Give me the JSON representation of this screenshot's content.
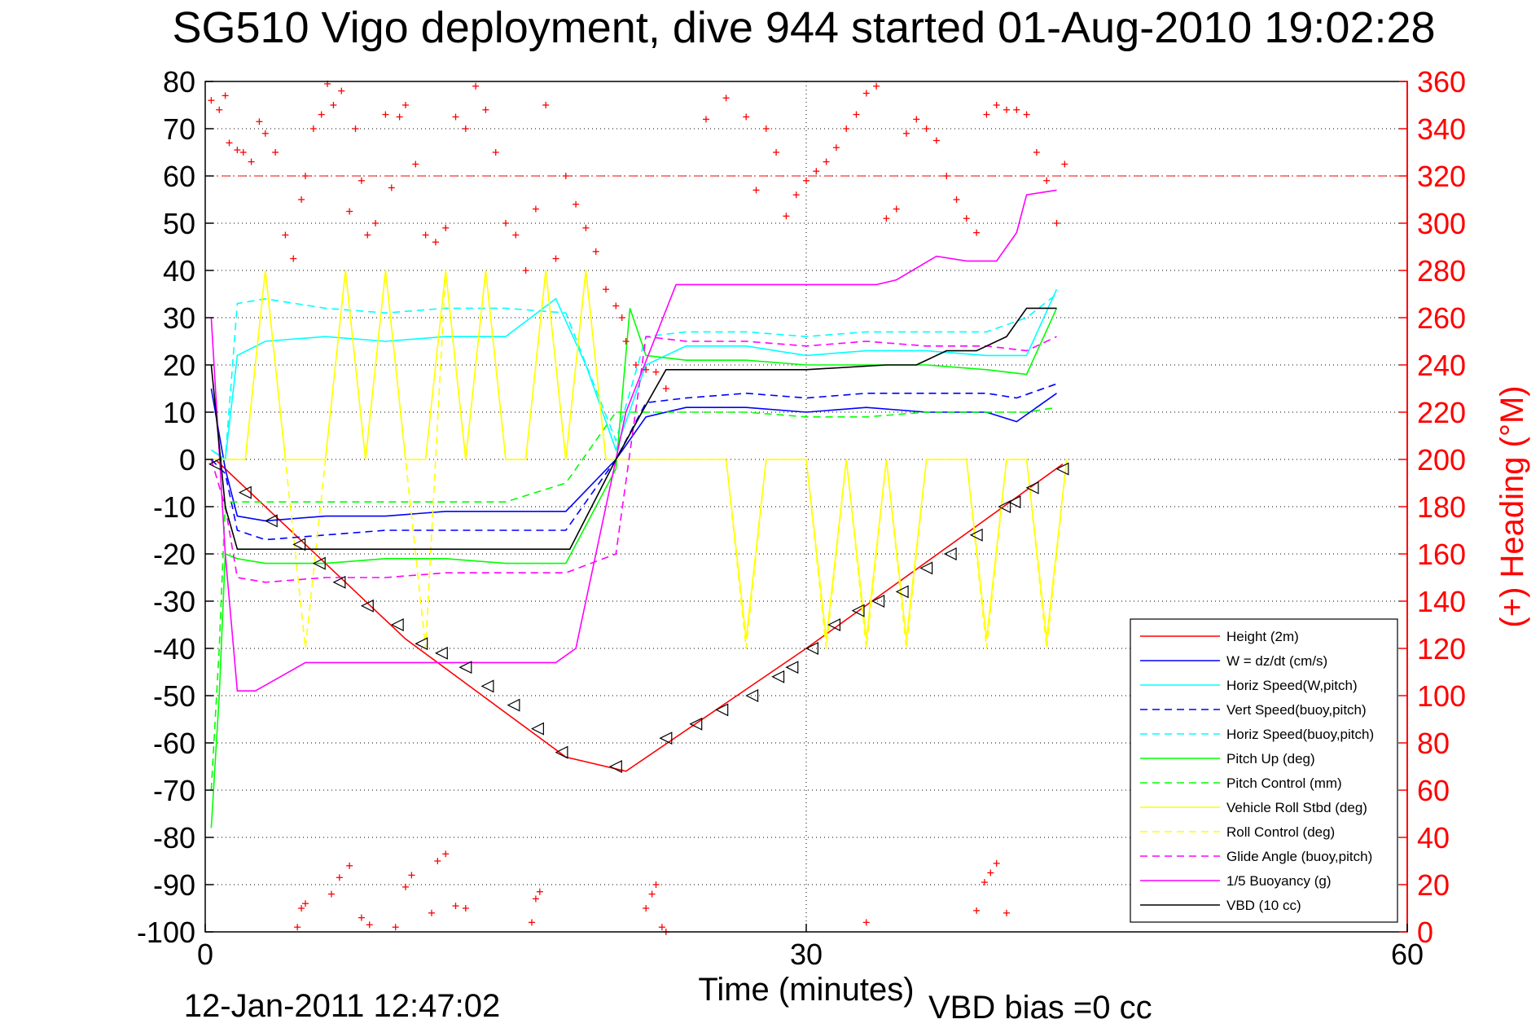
{
  "chart_data": {
    "type": "line",
    "title": "SG510 Vigo deployment, dive 944 started 01-Aug-2010 19:02:28",
    "xlabel": "Time (minutes)",
    "ylabel_right": "(+) Heading (°M)",
    "footer_date": "12-Jan-2011 12:47:02",
    "vbd_bias": "VBD bias =0 cc",
    "x_range": [
      0,
      60
    ],
    "y_range": [
      -100,
      80
    ],
    "y2_range": [
      0,
      360
    ],
    "x_ticks": [
      0,
      30,
      60
    ],
    "y_ticks": [
      80,
      70,
      60,
      50,
      40,
      30,
      20,
      10,
      0,
      -10,
      -20,
      -30,
      -40,
      -50,
      -60,
      -70,
      -80,
      -90,
      -100
    ],
    "y2_ticks": [
      360,
      340,
      320,
      300,
      280,
      260,
      240,
      220,
      200,
      180,
      160,
      140,
      120,
      100,
      80,
      60,
      40,
      20,
      0
    ],
    "grid": true,
    "legend_position": "bottom-right",
    "heading_reference_line": 320,
    "series": [
      {
        "name": "Height (2m)",
        "color": "#ff0000",
        "dash": "solid",
        "x": [
          0.5,
          10,
          18,
          21,
          30,
          42.8
        ],
        "y": [
          0,
          -38,
          -63,
          -66,
          -40,
          -1
        ]
      },
      {
        "name": "W = dz/dt (cm/s)",
        "color": "#0000ff",
        "dash": "solid",
        "x": [
          0.3,
          1.0,
          1.6,
          3,
          6,
          9,
          12,
          15,
          18,
          20.5,
          22,
          24,
          27,
          30,
          33,
          36,
          39,
          40.5,
          42.5
        ],
        "y": [
          15,
          -2,
          -12,
          -13,
          -12,
          -12,
          -11,
          -11,
          -11,
          0,
          9,
          11,
          11,
          10,
          11,
          10,
          10,
          8,
          14
        ]
      },
      {
        "name": "Horiz Speed(W,pitch)",
        "color": "#00ffff",
        "dash": "solid",
        "x": [
          0.3,
          1.0,
          1.6,
          3,
          6,
          9,
          12,
          15,
          17.5,
          19,
          20.5,
          22,
          24,
          27,
          30,
          33,
          36,
          39,
          41,
          42.5
        ],
        "y": [
          2,
          0,
          22,
          25,
          26,
          25,
          26,
          26,
          34,
          20,
          2,
          20,
          24,
          24,
          22,
          23,
          23,
          22,
          22,
          36
        ]
      },
      {
        "name": "Vert Speed(buoy,pitch)",
        "color": "#0000ff",
        "dash": "dashed",
        "x": [
          0.3,
          1.0,
          1.6,
          3,
          6,
          9,
          12,
          15,
          18,
          20.5,
          22,
          24,
          27,
          30,
          33,
          36,
          39,
          40.5,
          42.5
        ],
        "y": [
          0,
          -3,
          -15,
          -17,
          -16,
          -15,
          -15,
          -15,
          -15,
          0,
          12,
          13,
          14,
          13,
          14,
          14,
          14,
          13,
          16
        ]
      },
      {
        "name": "Horiz Speed(buoy,pitch)",
        "color": "#00ffff",
        "dash": "dashed",
        "x": [
          0.3,
          1.0,
          1.6,
          3,
          6,
          9,
          12,
          15,
          18,
          20.5,
          22,
          24,
          27,
          30,
          33,
          36,
          39,
          41,
          42.5
        ],
        "y": [
          2,
          0,
          33,
          34,
          32,
          31,
          32,
          32,
          31,
          4,
          26,
          27,
          27,
          26,
          27,
          27,
          27,
          30,
          35
        ]
      },
      {
        "name": "Pitch Up (deg)",
        "color": "#00ff00",
        "dash": "solid",
        "x": [
          0.3,
          0.7,
          1.0,
          1.6,
          3,
          6,
          9,
          12,
          15,
          18,
          20.5,
          21.2,
          22,
          24,
          27,
          30,
          33,
          36,
          39,
          41,
          42.5
        ],
        "y": [
          -78,
          -50,
          -20,
          -21,
          -22,
          -22,
          -21,
          -21,
          -22,
          -22,
          -2,
          32,
          22,
          21,
          21,
          20,
          20,
          20,
          19,
          18,
          32
        ]
      },
      {
        "name": "Pitch Control (mm)",
        "color": "#00ff00",
        "dash": "dashed",
        "x": [
          0.3,
          0.7,
          1.0,
          1.6,
          3,
          6,
          9,
          12,
          15,
          18,
          20.5,
          21.2,
          22,
          24,
          27,
          30,
          33,
          36,
          39,
          41,
          42.5
        ],
        "y": [
          -70,
          -40,
          -9,
          -9,
          -9,
          -9,
          -9,
          -9,
          -9,
          -5,
          10,
          10,
          10,
          10,
          10,
          9,
          9,
          10,
          10,
          10,
          11
        ]
      },
      {
        "name": "Vehicle Roll Stbd (deg)",
        "color": "#ffff00",
        "dash": "solid",
        "x": [
          0,
          1,
          2,
          3,
          4,
          5,
          6,
          7,
          8,
          9,
          10,
          11,
          12,
          13,
          14,
          15,
          16,
          17,
          18,
          19,
          20,
          21,
          22,
          23,
          24,
          25,
          26,
          27,
          28,
          29,
          30,
          31,
          32,
          33,
          34,
          35,
          36,
          37,
          38,
          39,
          40,
          41,
          42,
          43
        ],
        "y": [
          0,
          0,
          0,
          40,
          0,
          0,
          0,
          40,
          0,
          40,
          0,
          0,
          40,
          0,
          40,
          0,
          0,
          40,
          0,
          40,
          0,
          0,
          0,
          0,
          0,
          0,
          0,
          -38,
          0,
          0,
          0,
          -38,
          0,
          -38,
          0,
          -38,
          0,
          0,
          0,
          -38,
          0,
          0,
          -38,
          0
        ]
      },
      {
        "name": "Roll Control (deg)",
        "color": "#ffff00",
        "dash": "dashed",
        "x": [
          0,
          1,
          2,
          3,
          4,
          5,
          6,
          7,
          8,
          9,
          10,
          11,
          12,
          13,
          14,
          15,
          16,
          17,
          18,
          19,
          20,
          21,
          22,
          23,
          24,
          25,
          26,
          27,
          28,
          29,
          30,
          31,
          32,
          33,
          34,
          35,
          36,
          37,
          38,
          39,
          40,
          41,
          42,
          43
        ],
        "y": [
          0,
          0,
          0,
          40,
          0,
          -40,
          0,
          40,
          0,
          40,
          0,
          -40,
          40,
          0,
          40,
          0,
          0,
          40,
          0,
          40,
          0,
          0,
          0,
          0,
          0,
          0,
          0,
          -40,
          0,
          0,
          0,
          -40,
          0,
          -40,
          0,
          -40,
          0,
          0,
          0,
          -40,
          0,
          0,
          -40,
          0
        ]
      },
      {
        "name": "Glide Angle (buoy,pitch)",
        "color": "#ff00ff",
        "dash": "dashed",
        "x": [
          0.3,
          1.0,
          1.6,
          3,
          6,
          9,
          12,
          15,
          18,
          20.5,
          22,
          24,
          27,
          30,
          33,
          36,
          39,
          41,
          42.5
        ],
        "y": [
          0,
          -10,
          -25,
          -26,
          -25,
          -25,
          -24,
          -24,
          -24,
          -20,
          26,
          25,
          25,
          24,
          25,
          24,
          24,
          23,
          26
        ]
      },
      {
        "name": "1/5 Buoyancy (g)",
        "color": "#ff00ff",
        "dash": "solid",
        "x": [
          0.3,
          1.0,
          1.6,
          2.5,
          5,
          9,
          14,
          17.5,
          18.5,
          21,
          23.5,
          28,
          33.5,
          34.5,
          36.5,
          38,
          39.5,
          40.5,
          41,
          42.5
        ],
        "y": [
          30,
          -20,
          -49,
          -49,
          -43,
          -43,
          -43,
          -43,
          -40,
          10,
          37,
          37,
          37,
          38,
          43,
          42,
          42,
          48,
          56,
          57
        ]
      },
      {
        "name": "VBD (10 cc)",
        "color": "#000000",
        "dash": "solid",
        "x": [
          0.3,
          1.0,
          1.6,
          4,
          8,
          12,
          17,
          18.2,
          20.5,
          21.8,
          23,
          26,
          30,
          34,
          35.5,
          37,
          38.5,
          40,
          41,
          42.5
        ],
        "y": [
          20,
          -10,
          -19,
          -19,
          -19,
          -19,
          -19,
          -19,
          0,
          10,
          19,
          19,
          19,
          20,
          20,
          23,
          23,
          26,
          32,
          32
        ]
      }
    ],
    "heading_points": [
      [
        0.3,
        352
      ],
      [
        0.7,
        348
      ],
      [
        1,
        354
      ],
      [
        1.2,
        334
      ],
      [
        1.6,
        331
      ],
      [
        1.9,
        330
      ],
      [
        2.3,
        326
      ],
      [
        2.7,
        343
      ],
      [
        3,
        338
      ],
      [
        3.5,
        330
      ],
      [
        4,
        295
      ],
      [
        4.4,
        285
      ],
      [
        4.8,
        310
      ],
      [
        5,
        320
      ],
      [
        5.4,
        340
      ],
      [
        5.8,
        346
      ],
      [
        6.1,
        359
      ],
      [
        6.4,
        350
      ],
      [
        6.8,
        356
      ],
      [
        7.2,
        305
      ],
      [
        7.5,
        340
      ],
      [
        7.8,
        318
      ],
      [
        8.1,
        295
      ],
      [
        8.5,
        300
      ],
      [
        9,
        346
      ],
      [
        9.3,
        315
      ],
      [
        9.7,
        345
      ],
      [
        10,
        350
      ],
      [
        10.5,
        325
      ],
      [
        11,
        295
      ],
      [
        11.5,
        292
      ],
      [
        12,
        298
      ],
      [
        12.5,
        345
      ],
      [
        13,
        340
      ],
      [
        13.5,
        358
      ],
      [
        14,
        348
      ],
      [
        14.5,
        330
      ],
      [
        15,
        300
      ],
      [
        15.5,
        295
      ],
      [
        16,
        280
      ],
      [
        16.5,
        306
      ],
      [
        17,
        350
      ],
      [
        17.5,
        285
      ],
      [
        18,
        320
      ],
      [
        18.5,
        308
      ],
      [
        19,
        298
      ],
      [
        19.5,
        288
      ],
      [
        20,
        272
      ],
      [
        20.5,
        265
      ],
      [
        20.8,
        260
      ],
      [
        21,
        250
      ],
      [
        21.5,
        240
      ],
      [
        22,
        238
      ],
      [
        22.5,
        237
      ],
      [
        23,
        230
      ],
      [
        25,
        344
      ],
      [
        26,
        353
      ],
      [
        27,
        345
      ],
      [
        27.5,
        314
      ],
      [
        28,
        340
      ],
      [
        28.5,
        330
      ],
      [
        29,
        303
      ],
      [
        29.5,
        312
      ],
      [
        30,
        318
      ],
      [
        30.5,
        322
      ],
      [
        31,
        326
      ],
      [
        31.5,
        332
      ],
      [
        32,
        340
      ],
      [
        32.5,
        346
      ],
      [
        33,
        355
      ],
      [
        33.5,
        358
      ],
      [
        34,
        302
      ],
      [
        34.5,
        306
      ],
      [
        35,
        338
      ],
      [
        35.5,
        344
      ],
      [
        36,
        340
      ],
      [
        36.5,
        335
      ],
      [
        37,
        320
      ],
      [
        37.5,
        310
      ],
      [
        38,
        302
      ],
      [
        38.5,
        296
      ],
      [
        39,
        346
      ],
      [
        39.5,
        350
      ],
      [
        40,
        348
      ],
      [
        40.5,
        348
      ],
      [
        41,
        346
      ],
      [
        41.5,
        330
      ],
      [
        42,
        318
      ],
      [
        42.5,
        300
      ],
      [
        42.9,
        325
      ],
      [
        4.6,
        2
      ],
      [
        4.8,
        10
      ],
      [
        5,
        12
      ],
      [
        6.3,
        16
      ],
      [
        6.7,
        23
      ],
      [
        7.2,
        28
      ],
      [
        7.8,
        6
      ],
      [
        8.2,
        3
      ],
      [
        9.5,
        2
      ],
      [
        10,
        19
      ],
      [
        10.3,
        24
      ],
      [
        11.3,
        8
      ],
      [
        11.6,
        30
      ],
      [
        12,
        33
      ],
      [
        12.5,
        11
      ],
      [
        13,
        10
      ],
      [
        16.3,
        4
      ],
      [
        16.5,
        14
      ],
      [
        16.7,
        17
      ],
      [
        22,
        10
      ],
      [
        22.3,
        16
      ],
      [
        22.5,
        20
      ],
      [
        22.8,
        2
      ],
      [
        23,
        0
      ],
      [
        33,
        4
      ],
      [
        38.5,
        9
      ],
      [
        38.9,
        21
      ],
      [
        39.2,
        25
      ],
      [
        39.5,
        29
      ],
      [
        40,
        8
      ]
    ],
    "depth_markers": [
      [
        0.5,
        -1
      ],
      [
        2,
        -7
      ],
      [
        3.3,
        -13
      ],
      [
        4.7,
        -18
      ],
      [
        5.7,
        -22
      ],
      [
        6.7,
        -26
      ],
      [
        8.1,
        -31
      ],
      [
        9.6,
        -35
      ],
      [
        10.8,
        -39
      ],
      [
        11.8,
        -41
      ],
      [
        13,
        -44
      ],
      [
        14.1,
        -48
      ],
      [
        15.4,
        -52
      ],
      [
        16.6,
        -57
      ],
      [
        17.8,
        -62
      ],
      [
        20.5,
        -65
      ],
      [
        23,
        -59
      ],
      [
        24.5,
        -56
      ],
      [
        25.8,
        -53
      ],
      [
        27.3,
        -50
      ],
      [
        28.6,
        -46
      ],
      [
        29.3,
        -44
      ],
      [
        30.3,
        -40
      ],
      [
        31.4,
        -35
      ],
      [
        32.6,
        -32
      ],
      [
        33.6,
        -30
      ],
      [
        34.8,
        -28
      ],
      [
        36,
        -23
      ],
      [
        37.2,
        -20
      ],
      [
        38.5,
        -16
      ],
      [
        39.9,
        -10
      ],
      [
        40.4,
        -9
      ],
      [
        41.3,
        -6
      ],
      [
        42.8,
        -2
      ]
    ]
  }
}
